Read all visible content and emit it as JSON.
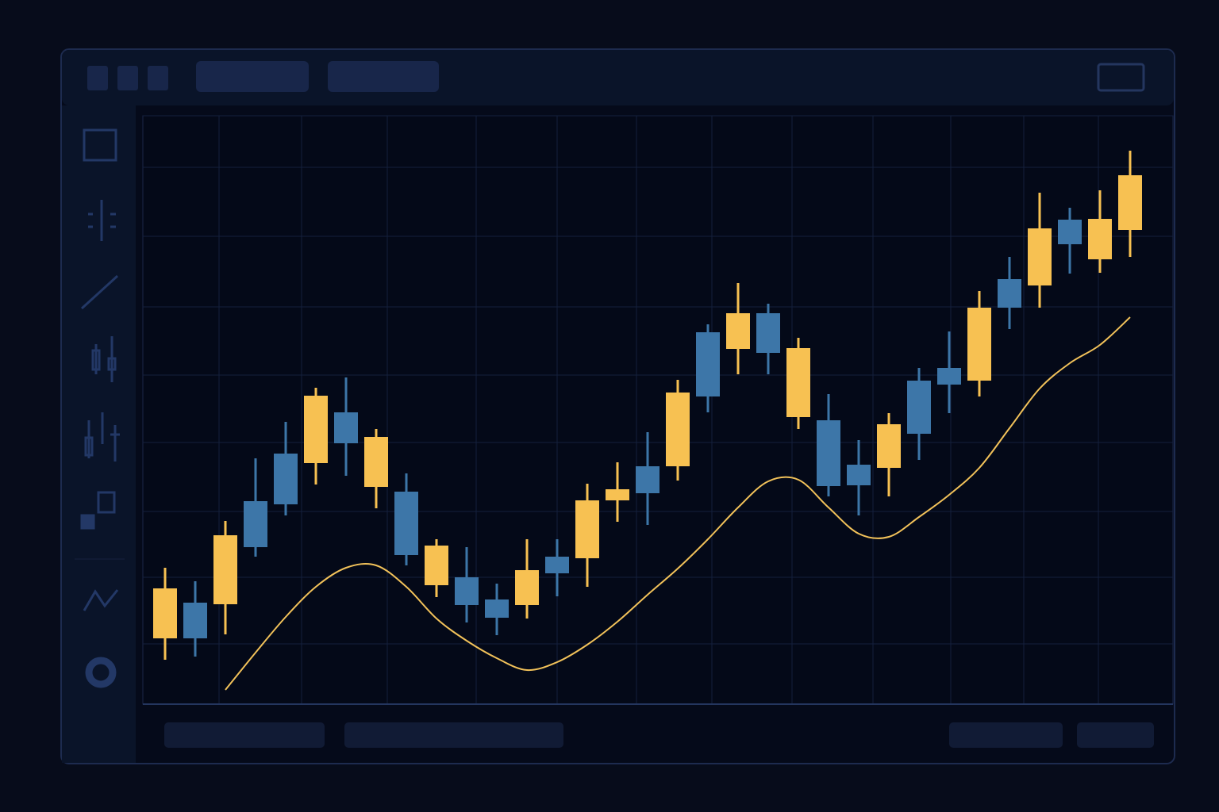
{
  "chart_data": {
    "type": "candlestick",
    "categories": [
      null,
      null,
      null,
      null,
      null,
      null,
      null,
      null,
      null,
      null,
      null,
      null,
      null,
      null,
      null,
      null,
      null,
      null,
      null,
      null,
      null,
      null,
      null,
      null,
      null,
      null,
      null,
      null,
      null,
      null,
      null,
      null,
      null
    ],
    "open": [
      83,
      128,
      126,
      256,
      316,
      304,
      368,
      274,
      268,
      150,
      160,
      132,
      125,
      186,
      184,
      257,
      300,
      300,
      469,
      448,
      493,
      362,
      358,
      302,
      298,
      408,
      424,
      408,
      536,
      528,
      611,
      561,
      598
    ],
    "high": [
      172,
      155,
      231,
      310,
      356,
      399,
      412,
      347,
      291,
      208,
      198,
      152,
      208,
      208,
      278,
      305,
      343,
      409,
      479,
      531,
      505,
      462,
      391,
      333,
      367,
      424,
      470,
      521,
      564,
      645,
      626,
      648,
      698
    ],
    "low": [
      56,
      60,
      88,
      186,
      238,
      277,
      288,
      247,
      175,
      135,
      103,
      87,
      108,
      136,
      148,
      230,
      226,
      282,
      368,
      416,
      416,
      347,
      262,
      238,
      262,
      308,
      367,
      388,
      473,
      500,
      543,
      544,
      564
    ],
    "close": [
      146,
      83,
      213,
      198,
      252,
      389,
      329,
      337,
      188,
      200,
      125,
      109,
      169,
      165,
      257,
      271,
      266,
      393,
      388,
      493,
      443,
      449,
      275,
      276,
      353,
      341,
      403,
      500,
      500,
      600,
      580,
      612,
      667
    ],
    "up_color": "#f7c152",
    "down_color": "#3d76a8",
    "ylim": [
      0,
      742
    ],
    "yticks": [
      0,
      76,
      160,
      243,
      330,
      415,
      501,
      590,
      677,
      742
    ],
    "grid": true,
    "overlay": {
      "type": "line",
      "color": "#f2c25a",
      "values": [
        null,
        null,
        18,
        65,
        110,
        148,
        172,
        175,
        148,
        108,
        80,
        58,
        43,
        53,
        75,
        104,
        138,
        171,
        208,
        248,
        281,
        283,
        248,
        215,
        211,
        236,
        264,
        298,
        348,
        398,
        430,
        453,
        488
      ]
    }
  }
}
